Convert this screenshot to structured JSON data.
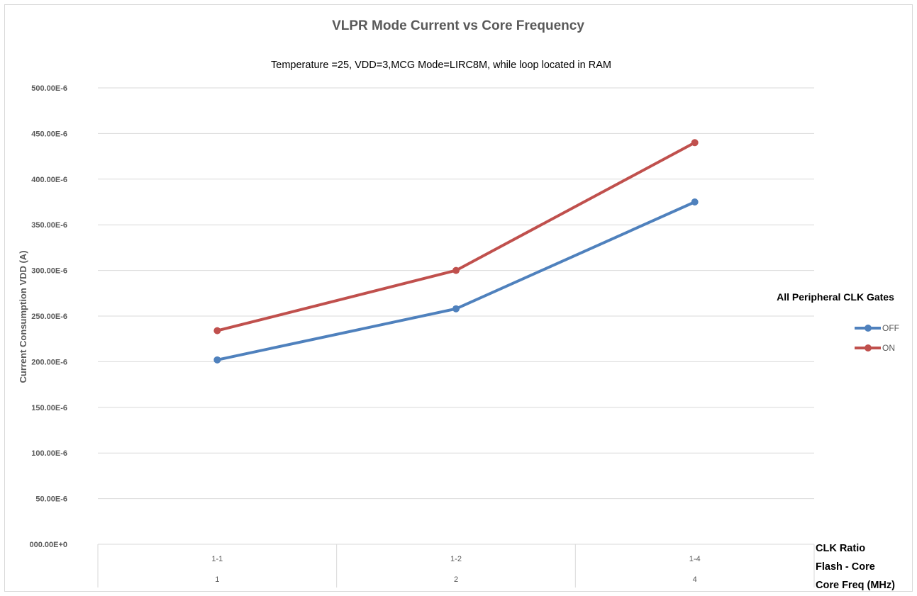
{
  "chart_data": {
    "type": "line",
    "title": "VLPR Mode Current vs Core Frequency",
    "subtitle": "Temperature =25, VDD=3,MCG Mode=LIRC8M, while loop located in RAM",
    "ylabel": "Current Consumption VDD (A)",
    "ylim": [
      0,
      0.0005
    ],
    "yticks": [
      0,
      5e-05,
      0.0001,
      0.00015,
      0.0002,
      0.00025,
      0.0003,
      0.00035,
      0.0004,
      0.00045,
      0.0005
    ],
    "ytick_labels": [
      "000.00E+0",
      "50.00E-6",
      "100.00E-6",
      "150.00E-6",
      "200.00E-6",
      "250.00E-6",
      "300.00E-6",
      "350.00E-6",
      "400.00E-6",
      "450.00E-6",
      "500.00E-6"
    ],
    "categories": [
      "1-1",
      "1-2",
      "1-4"
    ],
    "categories_level2": [
      "1",
      "2",
      "4"
    ],
    "xaxis_labels": [
      "CLK Ratio",
      "Flash - Core",
      "Core Freq (MHz)"
    ],
    "legend_title": "All Peripheral CLK Gates",
    "legend_position": "right",
    "grid": true,
    "series": [
      {
        "name": "OFF",
        "color": "#4f81bd",
        "values": [
          0.000202,
          0.000258,
          0.000375
        ]
      },
      {
        "name": "ON",
        "color": "#c0504d",
        "values": [
          0.000234,
          0.0003,
          0.00044
        ]
      }
    ]
  }
}
